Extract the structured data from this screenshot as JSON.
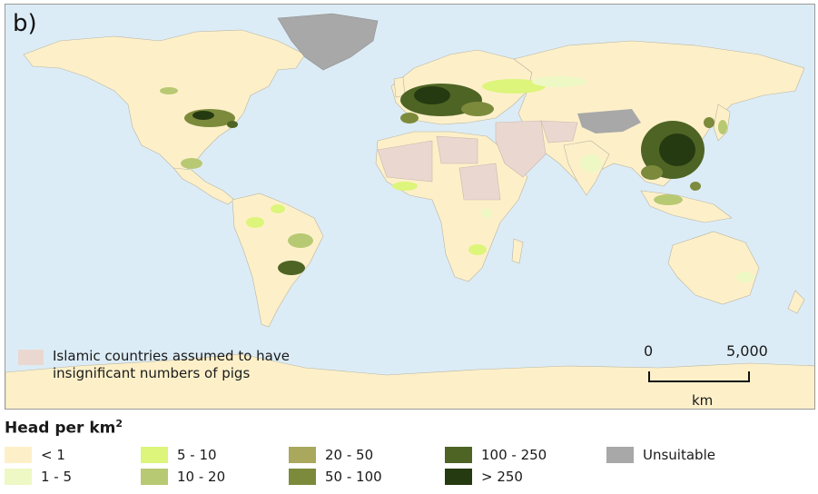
{
  "panel_label": "b)",
  "islamic_legend": {
    "text": "Islamic countries assumed to have insignificant numbers of pigs",
    "color": "#ead8d0"
  },
  "scale_bar": {
    "start": "0",
    "end": "5,000",
    "unit": "km"
  },
  "legend": {
    "title": "Head per km",
    "title_superscript": "2",
    "classes": [
      {
        "label": "< 1",
        "color": "#fdf0c9"
      },
      {
        "label": "1 - 5",
        "color": "#eef8c5"
      },
      {
        "label": "5 - 10",
        "color": "#dcf57a"
      },
      {
        "label": "10 - 20",
        "color": "#b8c973"
      },
      {
        "label": "20 - 50",
        "color": "#aaa85d"
      },
      {
        "label": "50 - 100",
        "color": "#7c8a3c"
      },
      {
        "label": "100 - 250",
        "color": "#4e6424"
      },
      {
        "label": "> 250",
        "color": "#263a11"
      },
      {
        "label": "Unsuitable",
        "color": "#a8a8a8"
      }
    ]
  },
  "colors": {
    "ocean": "#dcecf6",
    "land": "#fdf0c9",
    "border": "#9a9a9a"
  }
}
